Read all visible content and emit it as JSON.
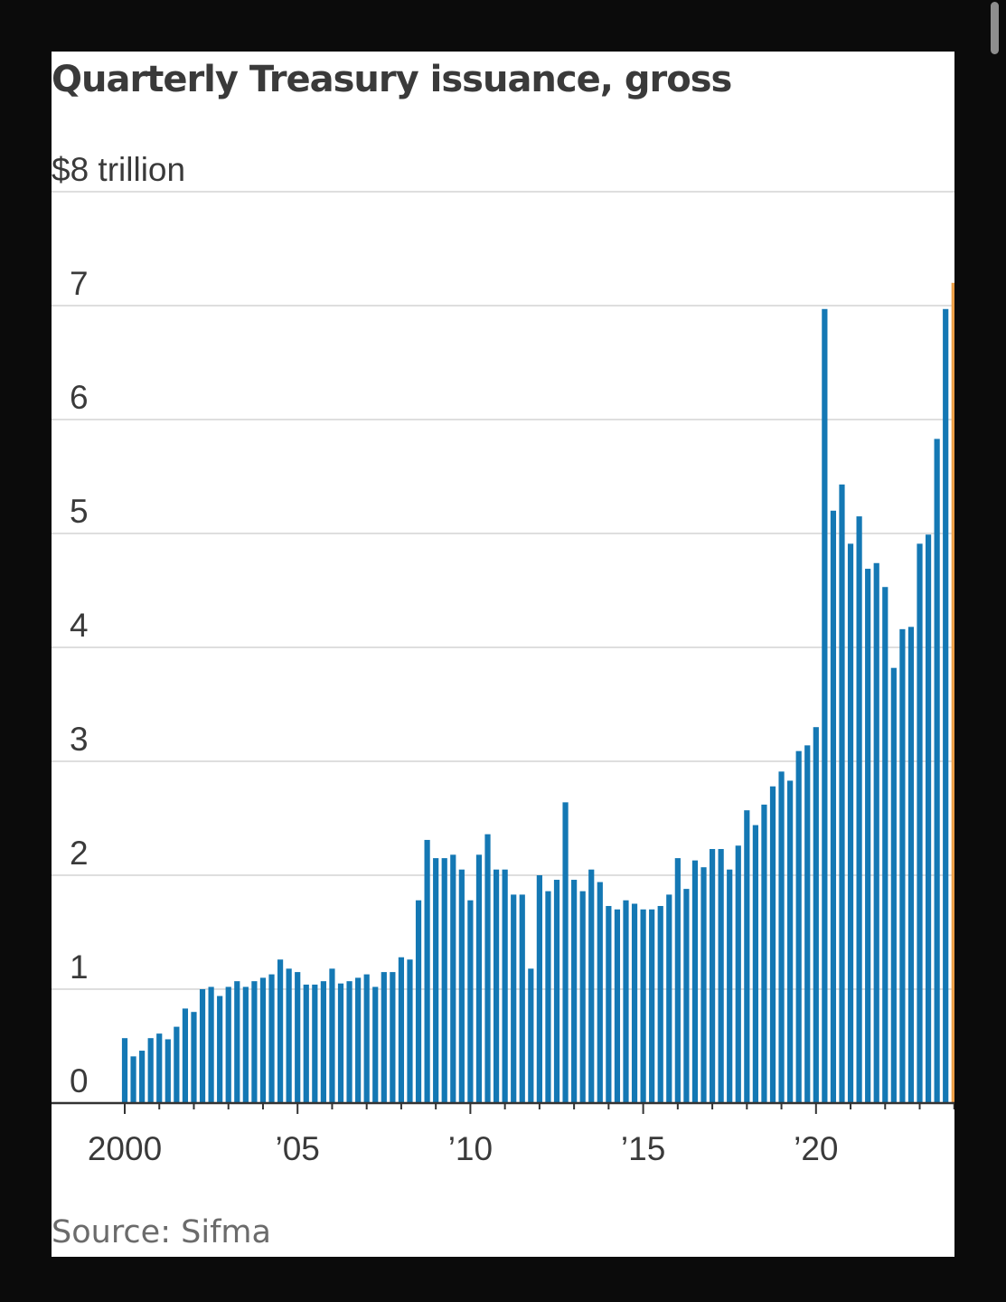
{
  "colors": {
    "background": "#0b0b0b",
    "card": "#ffffff",
    "bar": "#1478b4",
    "highlight_bar": "#eda048",
    "grid": "#dedede",
    "axis": "#333333",
    "text": "#3a3a3a"
  },
  "chart_data": {
    "type": "bar",
    "title": "Quarterly Treasury issuance, gross",
    "source": "Source: Sifma",
    "xlabel": "",
    "ylabel": "",
    "ylim": [
      0,
      8
    ],
    "yticks": [
      {
        "value": 0,
        "label": "0"
      },
      {
        "value": 1,
        "label": "1"
      },
      {
        "value": 2,
        "label": "2"
      },
      {
        "value": 3,
        "label": "3"
      },
      {
        "value": 4,
        "label": "4"
      },
      {
        "value": 5,
        "label": "5"
      },
      {
        "value": 6,
        "label": "6"
      },
      {
        "value": 7,
        "label": "7"
      },
      {
        "value": 8,
        "label": "$8 trillion"
      }
    ],
    "xticks": [
      {
        "index": 0,
        "label": "2000"
      },
      {
        "index": 20,
        "label": "’05"
      },
      {
        "index": 40,
        "label": "’10"
      },
      {
        "index": 60,
        "label": "’15"
      },
      {
        "index": 80,
        "label": "’20"
      }
    ],
    "unit": "$ trillion",
    "start_year": 2000,
    "grid": true,
    "highlight_last": true,
    "values": [
      0.57,
      0.41,
      0.46,
      0.57,
      0.61,
      0.56,
      0.67,
      0.83,
      0.8,
      1.0,
      1.02,
      0.94,
      1.02,
      1.07,
      1.02,
      1.07,
      1.1,
      1.13,
      1.26,
      1.18,
      1.15,
      1.04,
      1.04,
      1.07,
      1.18,
      1.05,
      1.07,
      1.1,
      1.13,
      1.02,
      1.15,
      1.15,
      1.28,
      1.26,
      1.78,
      2.31,
      2.15,
      2.15,
      2.18,
      2.05,
      1.78,
      2.18,
      2.36,
      2.05,
      2.05,
      1.83,
      1.83,
      1.18,
      2.0,
      1.86,
      1.96,
      2.64,
      1.96,
      1.86,
      2.05,
      1.94,
      1.73,
      1.7,
      1.78,
      1.75,
      1.7,
      1.7,
      1.73,
      1.83,
      2.15,
      1.88,
      2.13,
      2.07,
      2.23,
      2.23,
      2.05,
      2.26,
      2.57,
      2.44,
      2.62,
      2.78,
      2.91,
      2.83,
      3.09,
      3.14,
      3.3,
      6.97,
      5.2,
      5.43,
      4.91,
      5.15,
      4.69,
      4.74,
      4.53,
      3.82,
      4.16,
      4.18,
      4.91,
      4.99,
      5.83,
      6.97,
      7.2
    ]
  }
}
